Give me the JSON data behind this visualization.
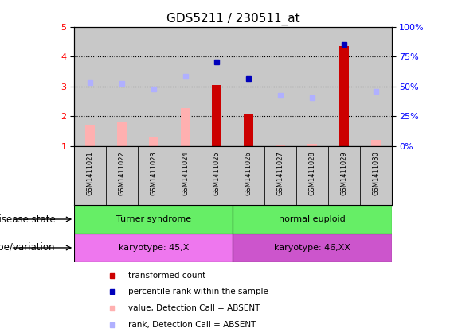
{
  "title": "GDS5211 / 230511_at",
  "samples": [
    "GSM1411021",
    "GSM1411022",
    "GSM1411023",
    "GSM1411024",
    "GSM1411025",
    "GSM1411026",
    "GSM1411027",
    "GSM1411028",
    "GSM1411029",
    "GSM1411030"
  ],
  "red_bar_values": [
    null,
    null,
    null,
    null,
    3.05,
    2.07,
    null,
    null,
    4.35,
    null
  ],
  "pink_bar_values": [
    1.72,
    1.82,
    1.3,
    2.27,
    null,
    null,
    1.04,
    1.07,
    null,
    1.22
  ],
  "blue_square_values": [
    null,
    null,
    null,
    null,
    3.82,
    3.27,
    null,
    null,
    4.42,
    null
  ],
  "lightblue_square_values": [
    3.13,
    3.11,
    2.93,
    3.35,
    null,
    null,
    2.7,
    2.62,
    null,
    2.83
  ],
  "ylim_left": [
    1,
    5
  ],
  "ylim_right": [
    0,
    100
  ],
  "yticks_left": [
    1,
    2,
    3,
    4,
    5
  ],
  "yticks_right": [
    0,
    25,
    50,
    75,
    100
  ],
  "ytick_labels_right": [
    "0%",
    "25%",
    "50%",
    "75%",
    "100%"
  ],
  "background_color": "#ffffff",
  "plot_bg_color": "#ffffff",
  "bar_bg_color": "#c8c8c8",
  "red_bar_color": "#cc0000",
  "pink_bar_color": "#ffb0b0",
  "blue_square_color": "#0000bb",
  "lightblue_square_color": "#b0b0ff",
  "disease_green": "#66ee66",
  "genotype_pink1": "#ee77ee",
  "genotype_pink2": "#cc55cc",
  "legend_items": [
    {
      "color": "#cc0000",
      "label": "transformed count"
    },
    {
      "color": "#0000bb",
      "label": "percentile rank within the sample"
    },
    {
      "color": "#ffb0b0",
      "label": "value, Detection Call = ABSENT"
    },
    {
      "color": "#b0b0ff",
      "label": "rank, Detection Call = ABSENT"
    }
  ],
  "disease_state_label": "disease state",
  "genotype_label": "genotype/variation",
  "title_fontsize": 11,
  "tick_fontsize": 8,
  "label_fontsize": 8.5
}
